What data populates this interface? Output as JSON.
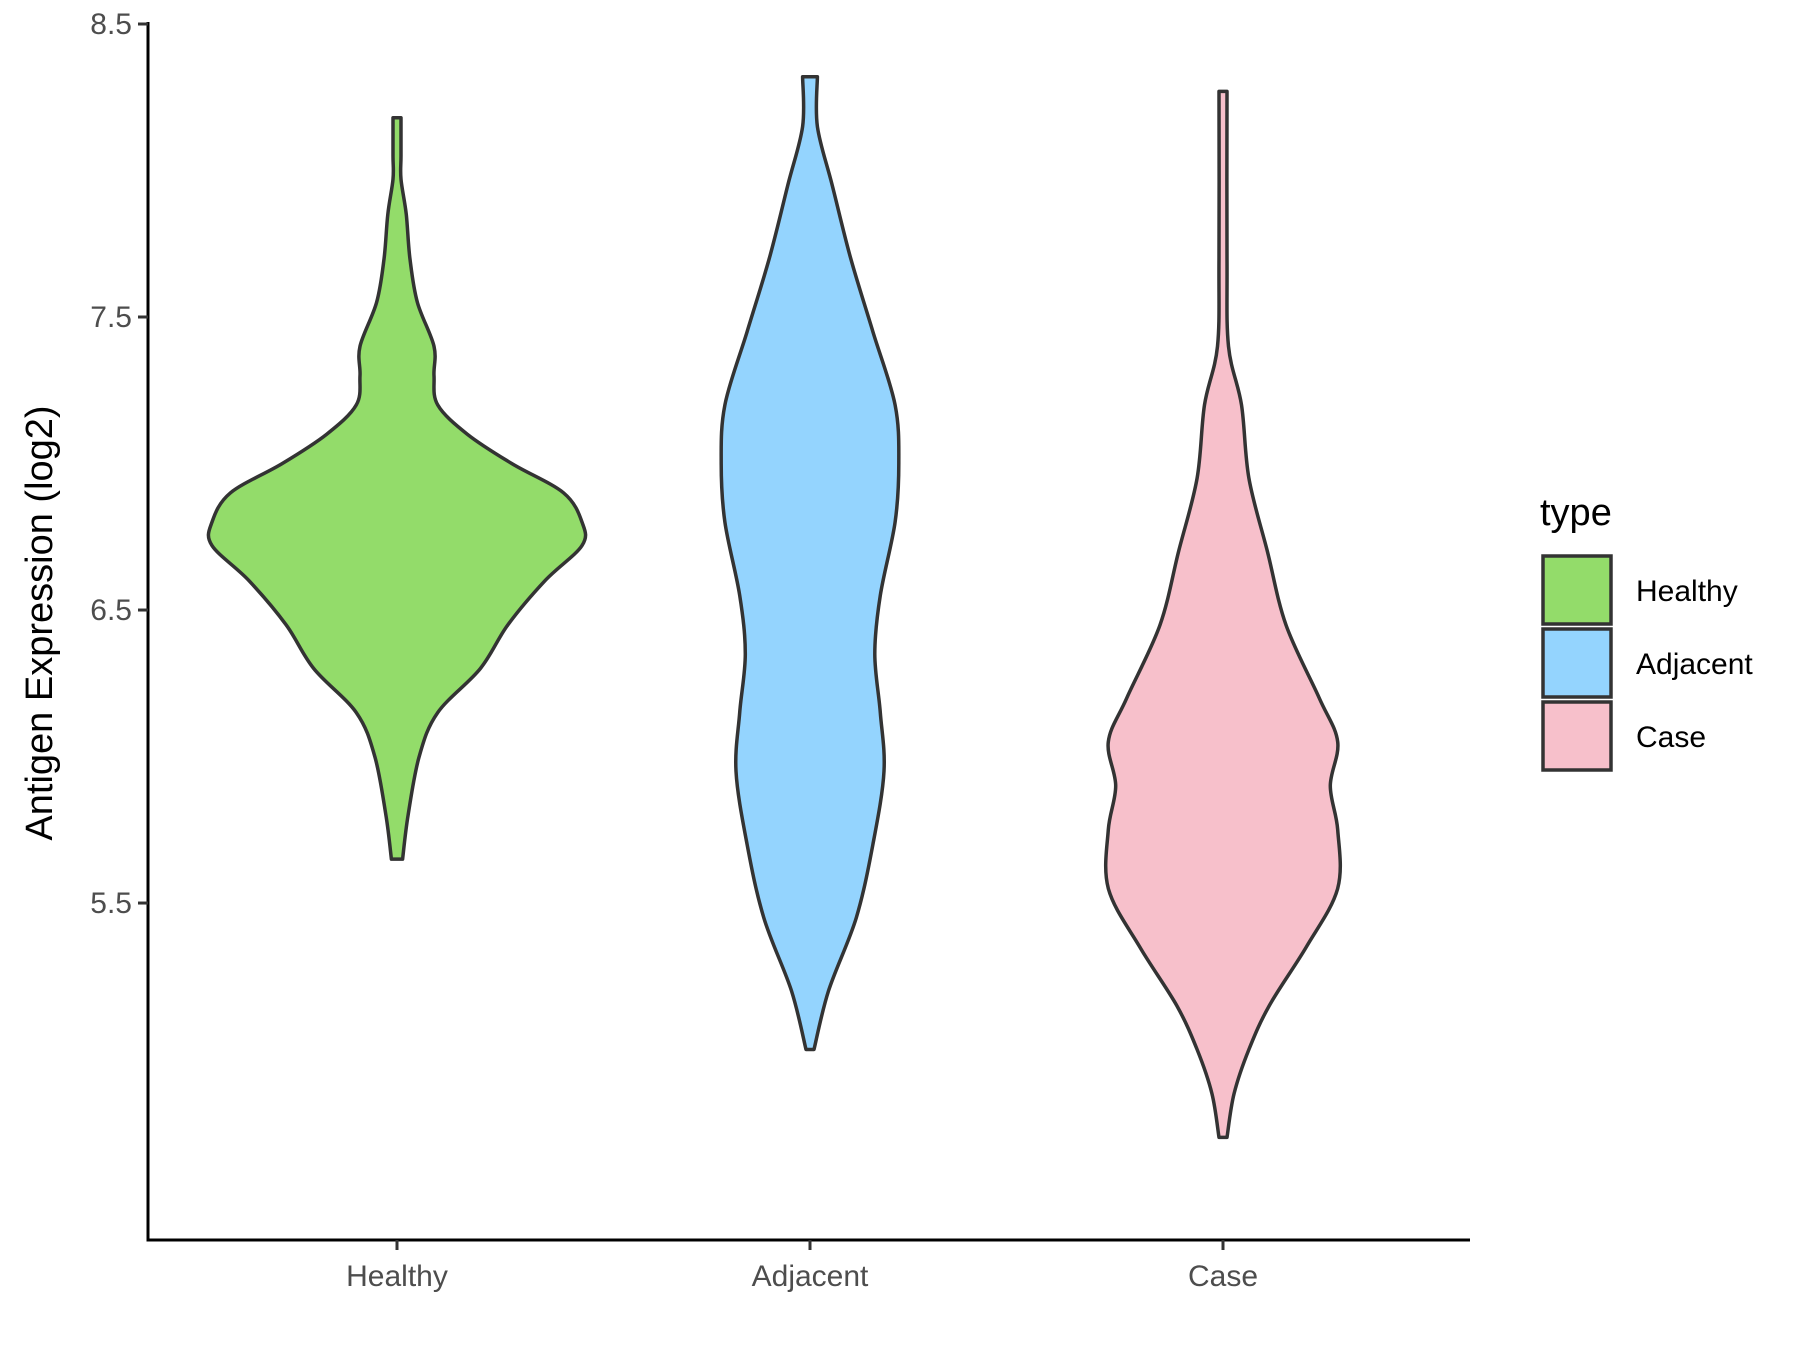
{
  "chart_data": {
    "type": "violin",
    "title": "",
    "xlabel": "",
    "ylabel": "Antigen Expression (log2)",
    "ylim": [
      4.35,
      8.5
    ],
    "y_ticks": [
      "5.5",
      "6.5",
      "7.5",
      "8.5"
    ],
    "categories": [
      "Healthy",
      "Adjacent",
      "Case"
    ],
    "colors": {
      "Healthy": "#93dc6a",
      "Adjacent": "#94d4fe",
      "Case": "#f7c0cb",
      "outline": "#333333"
    },
    "legend": {
      "title": "type",
      "placement": "right",
      "entries": [
        "Healthy",
        "Adjacent",
        "Case"
      ]
    },
    "grid": false,
    "series": [
      {
        "name": "Healthy",
        "y_min": 5.65,
        "y_max": 8.18,
        "density": [
          [
            5.65,
            0.03
          ],
          [
            5.8,
            0.06
          ],
          [
            6.0,
            0.12
          ],
          [
            6.15,
            0.22
          ],
          [
            6.3,
            0.45
          ],
          [
            6.45,
            0.6
          ],
          [
            6.6,
            0.8
          ],
          [
            6.72,
            1.0
          ],
          [
            6.8,
            1.0
          ],
          [
            6.9,
            0.9
          ],
          [
            7.0,
            0.62
          ],
          [
            7.1,
            0.38
          ],
          [
            7.2,
            0.22
          ],
          [
            7.3,
            0.2
          ],
          [
            7.4,
            0.2
          ],
          [
            7.55,
            0.11
          ],
          [
            7.7,
            0.07
          ],
          [
            7.85,
            0.05
          ],
          [
            7.97,
            0.01
          ],
          [
            8.05,
            0.01
          ],
          [
            8.18,
            0.01
          ]
        ]
      },
      {
        "name": "Adjacent",
        "y_min": 5.0,
        "y_max": 8.32,
        "density": [
          [
            5.0,
            0.02
          ],
          [
            5.2,
            0.1
          ],
          [
            5.45,
            0.25
          ],
          [
            5.7,
            0.34
          ],
          [
            5.95,
            0.4
          ],
          [
            6.15,
            0.38
          ],
          [
            6.35,
            0.35
          ],
          [
            6.55,
            0.38
          ],
          [
            6.8,
            0.46
          ],
          [
            7.0,
            0.48
          ],
          [
            7.2,
            0.46
          ],
          [
            7.45,
            0.34
          ],
          [
            7.7,
            0.22
          ],
          [
            7.95,
            0.12
          ],
          [
            8.15,
            0.04
          ],
          [
            8.32,
            0.04
          ]
        ]
      },
      {
        "name": "Case",
        "y_min": 4.7,
        "y_max": 8.27,
        "density": [
          [
            4.7,
            0.01
          ],
          [
            4.85,
            0.06
          ],
          [
            5.0,
            0.14
          ],
          [
            5.15,
            0.25
          ],
          [
            5.35,
            0.45
          ],
          [
            5.55,
            0.62
          ],
          [
            5.75,
            0.62
          ],
          [
            5.9,
            0.58
          ],
          [
            6.05,
            0.62
          ],
          [
            6.2,
            0.52
          ],
          [
            6.45,
            0.34
          ],
          [
            6.7,
            0.24
          ],
          [
            6.95,
            0.14
          ],
          [
            7.2,
            0.1
          ],
          [
            7.4,
            0.03
          ],
          [
            7.7,
            0.01
          ],
          [
            8.27,
            0.01
          ]
        ]
      }
    ]
  }
}
